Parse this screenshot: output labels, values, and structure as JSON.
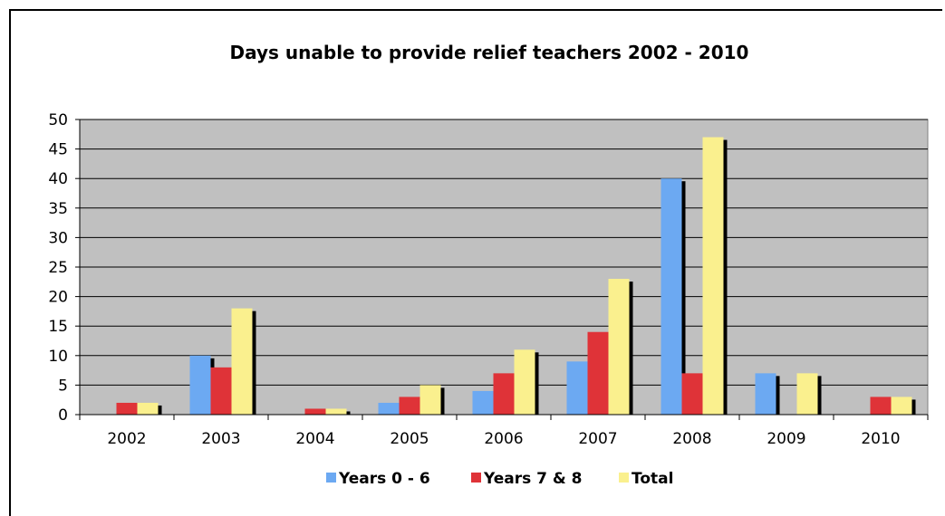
{
  "chart_data": {
    "type": "bar",
    "title": "Days unable to provide relief teachers 2002 - 2010",
    "xlabel": "",
    "ylabel": "",
    "categories": [
      "2002",
      "2003",
      "2004",
      "2005",
      "2006",
      "2007",
      "2008",
      "2009",
      "2010"
    ],
    "series": [
      {
        "name": "Years 0 - 6",
        "color": "#6CA9F2",
        "values": [
          0,
          10,
          0,
          2,
          4,
          9,
          40,
          7,
          0
        ]
      },
      {
        "name": "Years 7 & 8",
        "color": "#DF3338",
        "values": [
          2,
          8,
          1,
          3,
          7,
          14,
          7,
          0,
          3
        ]
      },
      {
        "name": "Total",
        "color": "#FAF08E",
        "values": [
          2,
          18,
          1,
          5,
          11,
          23,
          47,
          7,
          3
        ]
      }
    ],
    "ylim": [
      0,
      50
    ],
    "yticks": [
      0,
      5,
      10,
      15,
      20,
      25,
      30,
      35,
      40,
      45,
      50
    ],
    "grid": true,
    "plot_background": "#C0C0C0",
    "legend_position": "bottom"
  }
}
